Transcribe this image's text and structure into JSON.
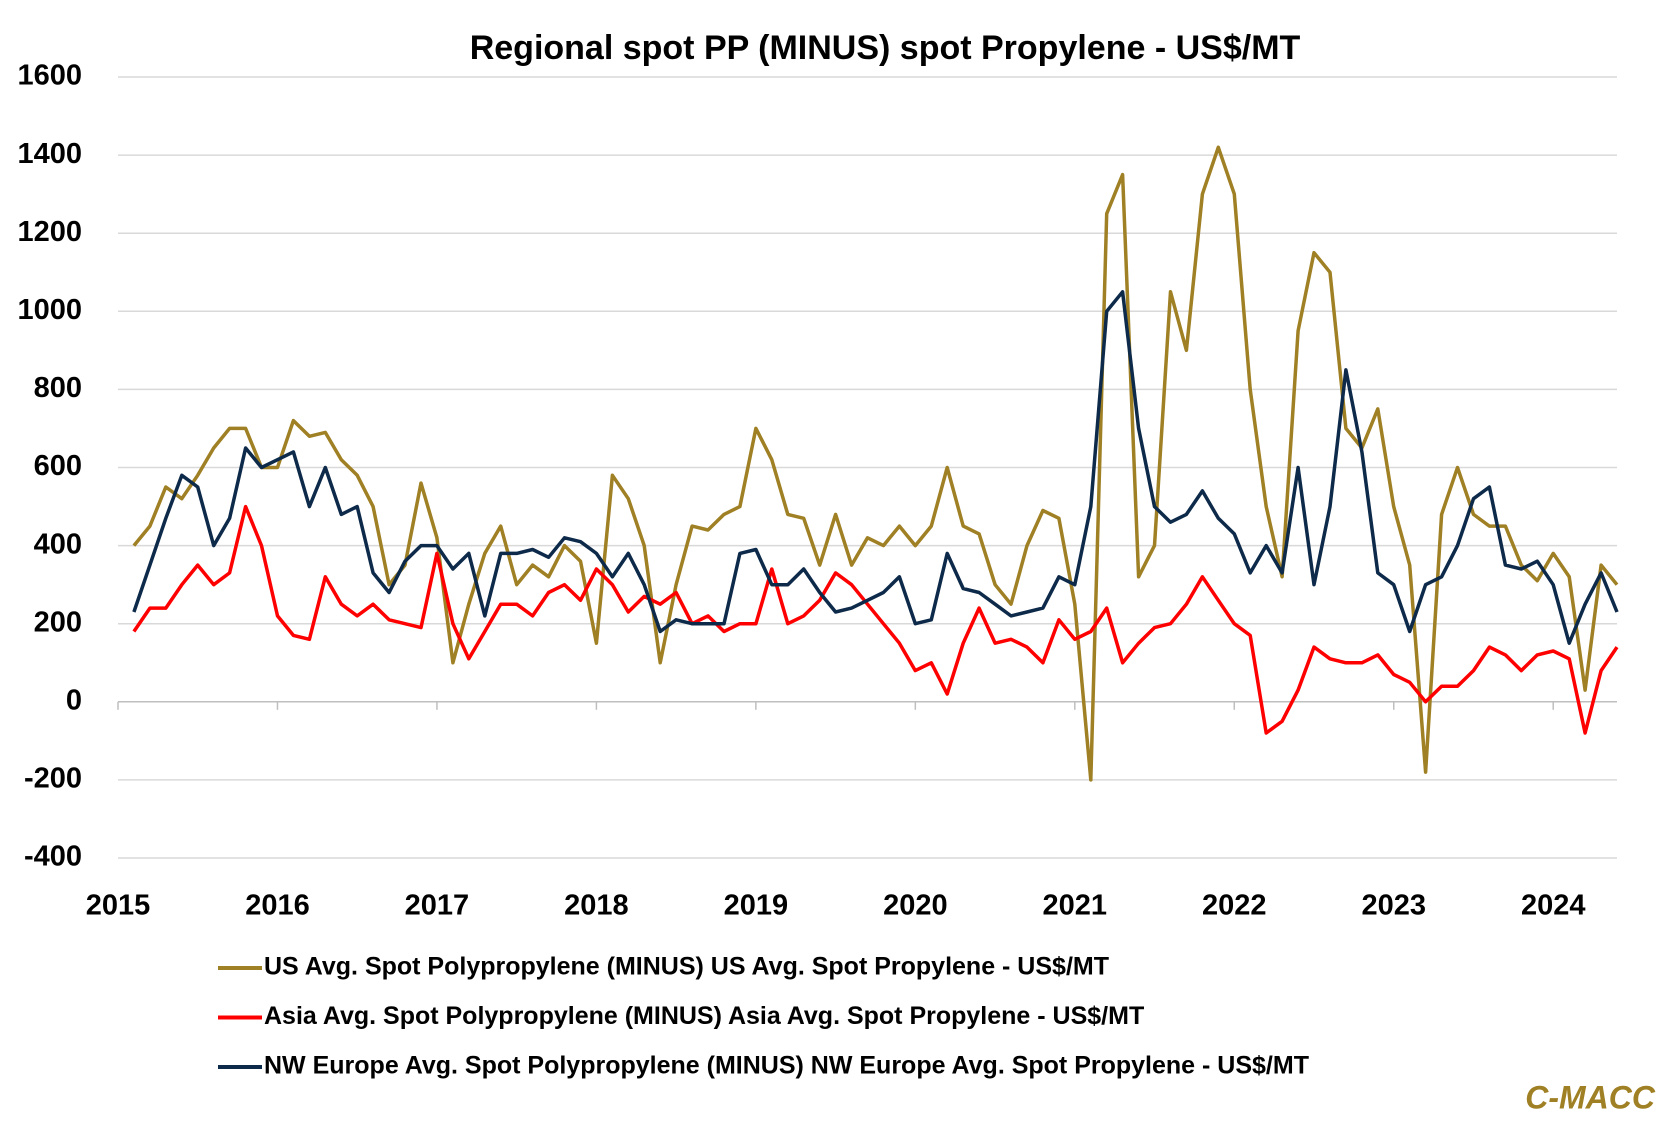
{
  "chart_data": {
    "type": "line",
    "title": "Regional spot PP (MINUS) spot Propylene - US$/MT",
    "source": "C-MACC",
    "x": [
      2015.1,
      2015.2,
      2015.3,
      2015.4,
      2015.5,
      2015.6,
      2015.7,
      2015.8,
      2015.9,
      2016.0,
      2016.1,
      2016.2,
      2016.3,
      2016.4,
      2016.5,
      2016.6,
      2016.7,
      2016.8,
      2016.9,
      2017.0,
      2017.1,
      2017.2,
      2017.3,
      2017.4,
      2017.5,
      2017.6,
      2017.7,
      2017.8,
      2017.9,
      2018.0,
      2018.1,
      2018.2,
      2018.3,
      2018.4,
      2018.5,
      2018.6,
      2018.7,
      2018.8,
      2018.9,
      2019.0,
      2019.1,
      2019.2,
      2019.3,
      2019.4,
      2019.5,
      2019.6,
      2019.7,
      2019.8,
      2019.9,
      2020.0,
      2020.1,
      2020.2,
      2020.3,
      2020.4,
      2020.5,
      2020.6,
      2020.7,
      2020.8,
      2020.9,
      2021.0,
      2021.1,
      2021.2,
      2021.3,
      2021.4,
      2021.5,
      2021.6,
      2021.7,
      2021.8,
      2021.9,
      2022.0,
      2022.1,
      2022.2,
      2022.3,
      2022.4,
      2022.5,
      2022.6,
      2022.7,
      2022.8,
      2022.9,
      2023.0,
      2023.1,
      2023.2,
      2023.3,
      2023.4,
      2023.5,
      2023.6,
      2023.7,
      2023.8,
      2023.9,
      2024.0,
      2024.1,
      2024.2,
      2024.3,
      2024.4
    ],
    "series": [
      {
        "name": "US Avg. Spot Polypropylene (MINUS) US Avg. Spot Propylene - US$/MT",
        "color": "#a08024",
        "values": [
          400,
          450,
          550,
          520,
          580,
          650,
          700,
          700,
          600,
          600,
          720,
          680,
          690,
          620,
          580,
          500,
          300,
          350,
          560,
          420,
          100,
          250,
          380,
          450,
          300,
          350,
          320,
          400,
          360,
          150,
          580,
          520,
          400,
          100,
          300,
          450,
          440,
          480,
          500,
          700,
          620,
          480,
          470,
          350,
          480,
          350,
          420,
          400,
          450,
          400,
          450,
          600,
          450,
          430,
          300,
          250,
          400,
          490,
          470,
          250,
          -200,
          1250,
          1350,
          320,
          400,
          1050,
          900,
          1300,
          1420,
          1300,
          800,
          500,
          320,
          950,
          1150,
          1100,
          700,
          650,
          750,
          500,
          350,
          -180,
          480,
          600,
          480,
          450,
          450,
          350,
          310,
          380,
          320,
          30,
          350,
          300
        ]
      },
      {
        "name": "Asia Avg. Spot Polypropylene (MINUS) Asia Avg. Spot Propylene - US$/MT",
        "color": "#ff0000",
        "values": [
          180,
          240,
          240,
          300,
          350,
          300,
          330,
          500,
          400,
          220,
          170,
          160,
          320,
          250,
          220,
          250,
          210,
          200,
          190,
          380,
          200,
          110,
          180,
          250,
          250,
          220,
          280,
          300,
          260,
          340,
          300,
          230,
          270,
          250,
          280,
          200,
          220,
          180,
          200,
          200,
          340,
          200,
          220,
          260,
          330,
          300,
          250,
          200,
          150,
          80,
          100,
          20,
          150,
          240,
          150,
          160,
          140,
          100,
          210,
          160,
          180,
          240,
          100,
          150,
          190,
          200,
          250,
          320,
          260,
          200,
          170,
          -80,
          -50,
          30,
          140,
          110,
          100,
          100,
          120,
          70,
          50,
          0,
          40,
          40,
          80,
          140,
          120,
          80,
          120,
          130,
          110,
          -80,
          80,
          140
        ]
      },
      {
        "name": "NW Europe Avg. Spot Polypropylene (MINUS) NW Europe Avg. Spot Propylene - US$/MT",
        "color": "#0d2a4a",
        "values": [
          230,
          350,
          470,
          580,
          550,
          400,
          470,
          650,
          600,
          620,
          640,
          500,
          600,
          480,
          500,
          330,
          280,
          360,
          400,
          400,
          340,
          380,
          220,
          380,
          380,
          390,
          370,
          420,
          410,
          380,
          320,
          380,
          300,
          180,
          210,
          200,
          200,
          200,
          380,
          390,
          300,
          300,
          340,
          280,
          230,
          240,
          260,
          280,
          320,
          200,
          210,
          380,
          290,
          280,
          250,
          220,
          230,
          240,
          320,
          300,
          500,
          1000,
          1050,
          700,
          500,
          460,
          480,
          540,
          470,
          430,
          330,
          400,
          330,
          600,
          300,
          500,
          850,
          640,
          330,
          300,
          180,
          300,
          320,
          400,
          520,
          550,
          350,
          340,
          360,
          300,
          150,
          250,
          330,
          230
        ]
      }
    ],
    "xlim": [
      2015,
      2024.4
    ],
    "xticks": [
      2015,
      2016,
      2017,
      2018,
      2019,
      2020,
      2021,
      2022,
      2023,
      2024
    ],
    "ylim": [
      -400,
      1600
    ],
    "yticks": [
      -400,
      -200,
      0,
      200,
      400,
      600,
      800,
      1000,
      1200,
      1400,
      1600
    ],
    "grid": true,
    "legend": "bottom"
  }
}
